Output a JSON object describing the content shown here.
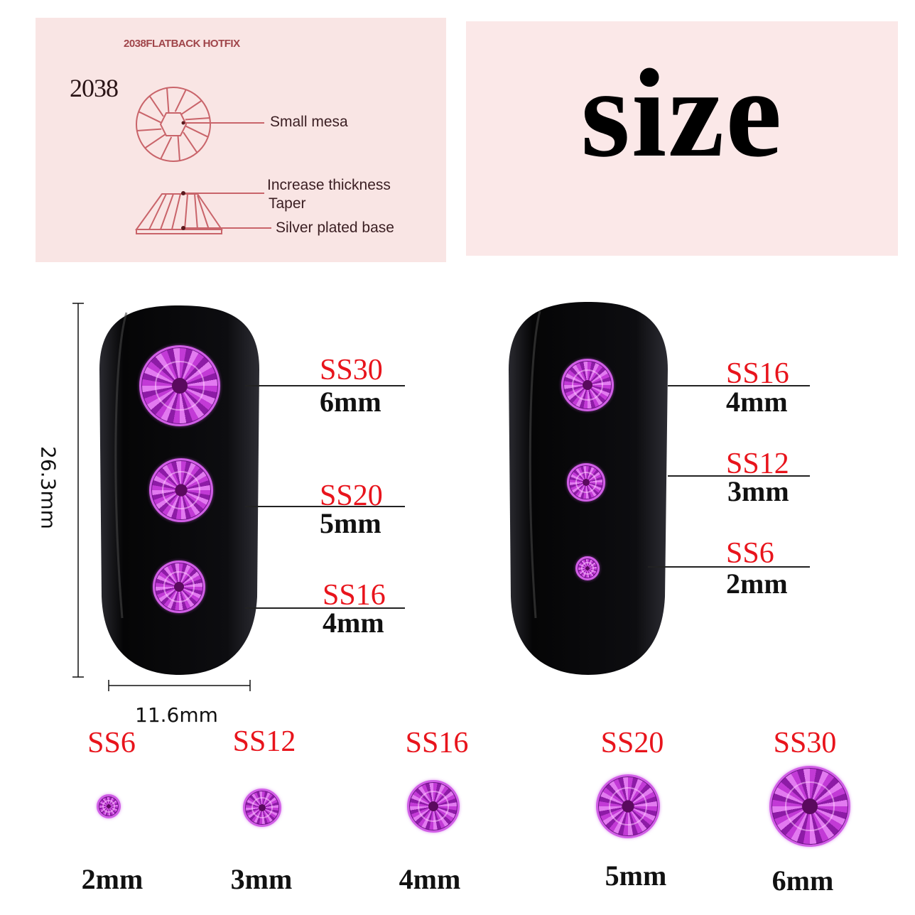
{
  "diagram": {
    "title": "2038FLATBACK HOTFIX",
    "model": "2038",
    "callouts": {
      "small_mesa": "Small mesa",
      "increase_thickness": "Increase thickness",
      "taper": "Taper",
      "silver_base": "Silver plated base"
    },
    "line_color": "#c9646a"
  },
  "heading": "size",
  "nail_left": {
    "gems": [
      {
        "code": "SS30",
        "mm": "6mm"
      },
      {
        "code": "SS20",
        "mm": "5mm"
      },
      {
        "code": "SS16",
        "mm": "4mm"
      }
    ],
    "height": "26.3mm",
    "width": "11.6mm"
  },
  "nail_right": {
    "gems": [
      {
        "code": "SS16",
        "mm": "4mm"
      },
      {
        "code": "SS12",
        "mm": "3mm"
      },
      {
        "code": "SS6",
        "mm": "2mm"
      }
    ]
  },
  "row": [
    {
      "code": "SS6",
      "mm": "2mm"
    },
    {
      "code": "SS12",
      "mm": "3mm"
    },
    {
      "code": "SS16",
      "mm": "4mm"
    },
    {
      "code": "SS20",
      "mm": "5mm"
    },
    {
      "code": "SS30",
      "mm": "6mm"
    }
  ],
  "colors": {
    "label_red": "#e8141c",
    "gem": "#b02cc8",
    "nail": "#0b0b0d",
    "panel": "#f9e5e4"
  }
}
